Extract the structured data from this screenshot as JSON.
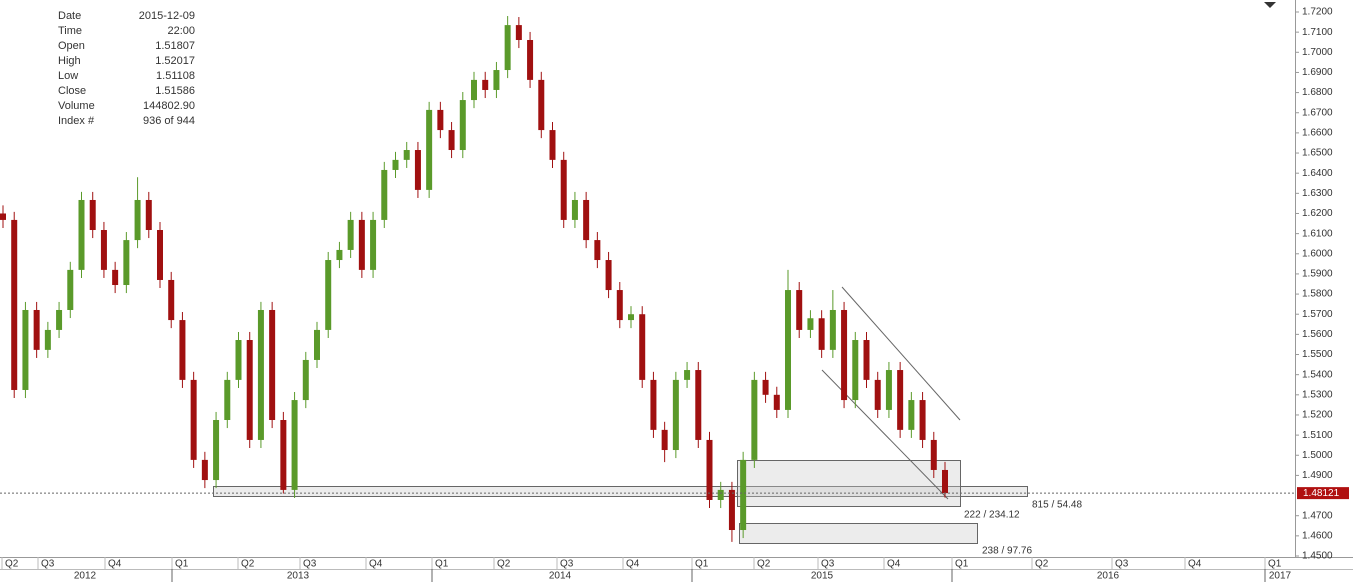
{
  "chart_data": {
    "type": "candlestick",
    "info": [
      [
        "Date",
        "2015-12-09"
      ],
      [
        "Time",
        "22:00"
      ],
      [
        "Open",
        "1.51807"
      ],
      [
        "High",
        "1.52017"
      ],
      [
        "Low",
        "1.51108"
      ],
      [
        "Close",
        "1.51586"
      ],
      [
        "Volume",
        "144802.90"
      ],
      [
        "Index #",
        "936 of 944"
      ]
    ],
    "up_color": "#5a9a2a",
    "down_color": "#a01010",
    "ohlc": [
      [
        1.62,
        1.624,
        1.6128,
        1.6168
      ],
      [
        1.6168,
        1.6208,
        1.5284,
        1.5324
      ],
      [
        1.5324,
        1.5761,
        1.5284,
        1.5721
      ],
      [
        1.5721,
        1.5761,
        1.5483,
        1.5523
      ],
      [
        1.5523,
        1.5662,
        1.5483,
        1.5622
      ],
      [
        1.5622,
        1.5761,
        1.5582,
        1.5721
      ],
      [
        1.5721,
        1.596,
        1.5681,
        1.592
      ],
      [
        1.592,
        1.6307,
        1.588,
        1.6267
      ],
      [
        1.6267,
        1.6307,
        1.6078,
        1.6118
      ],
      [
        1.6118,
        1.6158,
        1.588,
        1.592
      ],
      [
        1.592,
        1.596,
        1.5805,
        1.5845
      ],
      [
        1.5845,
        1.6108,
        1.5805,
        1.6068
      ],
      [
        1.6068,
        1.638,
        1.6028,
        1.6267
      ],
      [
        1.6267,
        1.6307,
        1.6078,
        1.6118
      ],
      [
        1.6118,
        1.6158,
        1.583,
        1.587
      ],
      [
        1.587,
        1.591,
        1.5631,
        1.5671
      ],
      [
        1.5671,
        1.5711,
        1.5334,
        1.5374
      ],
      [
        1.5374,
        1.5414,
        1.4937,
        1.4977
      ],
      [
        1.4977,
        1.5017,
        1.4837,
        1.4877
      ],
      [
        1.4877,
        1.5215,
        1.4837,
        1.5175
      ],
      [
        1.5175,
        1.5414,
        1.5135,
        1.5374
      ],
      [
        1.5374,
        1.5612,
        1.5334,
        1.5572
      ],
      [
        1.5572,
        1.5612,
        1.5036,
        1.5076
      ],
      [
        1.5076,
        1.5761,
        1.5036,
        1.5721
      ],
      [
        1.5721,
        1.5761,
        1.5135,
        1.5175
      ],
      [
        1.5175,
        1.5215,
        1.481,
        1.4828
      ],
      [
        1.4828,
        1.5314,
        1.4788,
        1.5274
      ],
      [
        1.5274,
        1.5513,
        1.5234,
        1.5473
      ],
      [
        1.5473,
        1.5662,
        1.5433,
        1.5622
      ],
      [
        1.5622,
        1.6009,
        1.5582,
        1.5969
      ],
      [
        1.5969,
        1.6059,
        1.5929,
        1.6019
      ],
      [
        1.6019,
        1.6208,
        1.5979,
        1.6168
      ],
      [
        1.6168,
        1.6208,
        1.588,
        1.592
      ],
      [
        1.592,
        1.6208,
        1.588,
        1.6168
      ],
      [
        1.6168,
        1.6456,
        1.6128,
        1.6416
      ],
      [
        1.6416,
        1.6506,
        1.6376,
        1.6466
      ],
      [
        1.6466,
        1.6555,
        1.6426,
        1.6515
      ],
      [
        1.6515,
        1.6555,
        1.6277,
        1.6317
      ],
      [
        1.6317,
        1.6754,
        1.6277,
        1.6714
      ],
      [
        1.6714,
        1.6754,
        1.6574,
        1.6614
      ],
      [
        1.6614,
        1.6654,
        1.6475,
        1.6515
      ],
      [
        1.6515,
        1.6803,
        1.6475,
        1.6763
      ],
      [
        1.6763,
        1.6903,
        1.6723,
        1.6863
      ],
      [
        1.6863,
        1.6903,
        1.6773,
        1.6813
      ],
      [
        1.6813,
        1.6952,
        1.6773,
        1.6912
      ],
      [
        1.6912,
        1.718,
        1.6872,
        1.7135
      ],
      [
        1.7135,
        1.7175,
        1.7021,
        1.7061
      ],
      [
        1.7061,
        1.7101,
        1.6823,
        1.6863
      ],
      [
        1.6863,
        1.6903,
        1.6574,
        1.6614
      ],
      [
        1.6614,
        1.6654,
        1.6426,
        1.6466
      ],
      [
        1.6466,
        1.6506,
        1.6128,
        1.6168
      ],
      [
        1.6168,
        1.6307,
        1.6128,
        1.6267
      ],
      [
        1.6267,
        1.6307,
        1.6028,
        1.6068
      ],
      [
        1.6068,
        1.6108,
        1.5929,
        1.5969
      ],
      [
        1.5969,
        1.6009,
        1.578,
        1.582
      ],
      [
        1.582,
        1.586,
        1.5631,
        1.5671
      ],
      [
        1.5671,
        1.574,
        1.5631,
        1.57
      ],
      [
        1.57,
        1.574,
        1.5334,
        1.5374
      ],
      [
        1.5374,
        1.5414,
        1.5086,
        1.5126
      ],
      [
        1.5126,
        1.5166,
        1.4966,
        1.5026
      ],
      [
        1.5026,
        1.5414,
        1.4986,
        1.5374
      ],
      [
        1.5374,
        1.5463,
        1.5334,
        1.5423
      ],
      [
        1.5423,
        1.5463,
        1.5036,
        1.5076
      ],
      [
        1.5076,
        1.5116,
        1.4738,
        1.4778
      ],
      [
        1.4778,
        1.4868,
        1.4738,
        1.4828
      ],
      [
        1.4828,
        1.4868,
        1.457,
        1.4629
      ],
      [
        1.4629,
        1.5017,
        1.4589,
        1.4977
      ],
      [
        1.4977,
        1.5414,
        1.4937,
        1.5374
      ],
      [
        1.5374,
        1.5414,
        1.526,
        1.53
      ],
      [
        1.53,
        1.534,
        1.5185,
        1.5225
      ],
      [
        1.5225,
        1.592,
        1.5185,
        1.582
      ],
      [
        1.582,
        1.586,
        1.5582,
        1.5622
      ],
      [
        1.5622,
        1.572,
        1.5582,
        1.568
      ],
      [
        1.568,
        1.572,
        1.5483,
        1.5523
      ],
      [
        1.5523,
        1.582,
        1.5483,
        1.5721
      ],
      [
        1.5721,
        1.5761,
        1.5234,
        1.5274
      ],
      [
        1.5274,
        1.5612,
        1.5234,
        1.5572
      ],
      [
        1.5572,
        1.5612,
        1.5334,
        1.5374
      ],
      [
        1.5374,
        1.5414,
        1.5185,
        1.5225
      ],
      [
        1.5225,
        1.5463,
        1.5185,
        1.5423
      ],
      [
        1.5423,
        1.5463,
        1.5086,
        1.5126
      ],
      [
        1.5126,
        1.5314,
        1.5086,
        1.5274
      ],
      [
        1.5274,
        1.5314,
        1.5036,
        1.5076
      ],
      [
        1.5076,
        1.5116,
        1.4887,
        1.4927
      ],
      [
        1.4927,
        1.4967,
        1.479,
        1.4812
      ]
    ],
    "last_price": 1.48121,
    "last_color": "#b01010",
    "ylim": [
      1.45,
      1.72
    ],
    "yticks": [
      {
        "value": 1.45,
        "label": "1.4500"
      },
      {
        "value": 1.46,
        "label": "1.4600"
      },
      {
        "value": 1.47,
        "label": "1.4700"
      },
      {
        "value": 1.49,
        "label": "1.4900"
      },
      {
        "value": 1.5,
        "label": "1.5000"
      },
      {
        "value": 1.51,
        "label": "1.5100"
      },
      {
        "value": 1.52,
        "label": "1.5200"
      },
      {
        "value": 1.53,
        "label": "1.5300"
      },
      {
        "value": 1.54,
        "label": "1.5400"
      },
      {
        "value": 1.55,
        "label": "1.5500"
      },
      {
        "value": 1.56,
        "label": "1.5600"
      },
      {
        "value": 1.57,
        "label": "1.5700"
      },
      {
        "value": 1.58,
        "label": "1.5800"
      },
      {
        "value": 1.59,
        "label": "1.5900"
      },
      {
        "value": 1.6,
        "label": "1.6000"
      },
      {
        "value": 1.61,
        "label": "1.6100"
      },
      {
        "value": 1.62,
        "label": "1.6200"
      },
      {
        "value": 1.63,
        "label": "1.6300"
      },
      {
        "value": 1.64,
        "label": "1.6400"
      },
      {
        "value": 1.65,
        "label": "1.6500"
      },
      {
        "value": 1.66,
        "label": "1.6600"
      },
      {
        "value": 1.67,
        "label": "1.6700"
      },
      {
        "value": 1.68,
        "label": "1.6800"
      },
      {
        "value": 1.69,
        "label": "1.6900"
      },
      {
        "value": 1.7,
        "label": "1.7000"
      },
      {
        "value": 1.71,
        "label": "1.7100"
      },
      {
        "value": 1.72,
        "label": "1.7200"
      }
    ],
    "quarters": [
      "Q2",
      "Q3",
      "Q4",
      "Q1",
      "Q2",
      "Q3",
      "Q4",
      "Q1",
      "Q2",
      "Q3",
      "Q4",
      "Q1",
      "Q2",
      "Q3",
      "Q4",
      "Q1",
      "Q2",
      "Q3",
      "Q4",
      "Q1"
    ],
    "years": [
      "2012",
      "2013",
      "2014",
      "2015",
      "2016",
      "2017"
    ],
    "annotations": [
      "815 / 54.48",
      "222 / 234.12",
      "238 / 97.76"
    ]
  }
}
